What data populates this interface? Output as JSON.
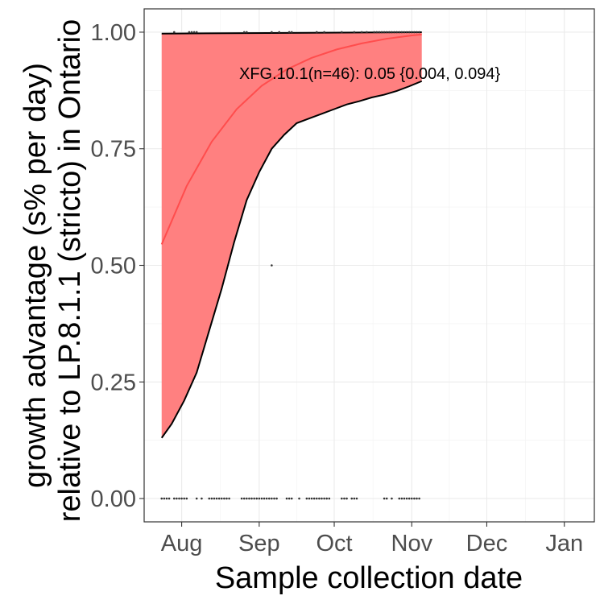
{
  "chart_data": {
    "type": "area",
    "annotation": "XFG.10.1(n=46): 0.05 {0.004, 0.094}",
    "xlabel": "Sample collection date",
    "ylabel_line1": "growth advantage (s% per day)",
    "ylabel_line2": "relative to LP.8.1.1 (stricto) in Ontario",
    "x_ticks": [
      "2025-08-01",
      "2025-09-01",
      "2025-10-01",
      "2025-11-01",
      "2025-12-01",
      "2026-01-01"
    ],
    "x_tick_labels": [
      "Aug",
      "Sep",
      "Oct",
      "Nov",
      "Dec",
      "Jan"
    ],
    "xlim": [
      "2025-07-17",
      "2026-01-13"
    ],
    "y_ticks": [
      0.0,
      0.25,
      0.5,
      0.75,
      1.0
    ],
    "y_tick_labels": [
      "0.00",
      "0.25",
      "0.50",
      "0.75",
      "1.00"
    ],
    "ylim": [
      -0.05,
      1.05
    ],
    "grid": true,
    "fit_color": "#ff4d4d",
    "band_color": "#ff8080",
    "fit": {
      "x": [
        "2025-07-24",
        "2025-08-03",
        "2025-08-13",
        "2025-08-23",
        "2025-09-02",
        "2025-09-12",
        "2025-09-22",
        "2025-10-02",
        "2025-10-12",
        "2025-10-22",
        "2025-11-01",
        "2025-11-05"
      ],
      "y": [
        0.545,
        0.67,
        0.765,
        0.835,
        0.885,
        0.92,
        0.945,
        0.963,
        0.976,
        0.986,
        0.993,
        0.995
      ]
    },
    "band_lower": {
      "x": [
        "2025-07-24",
        "2025-07-28",
        "2025-08-02",
        "2025-08-07",
        "2025-08-12",
        "2025-08-17",
        "2025-08-22",
        "2025-08-27",
        "2025-09-01",
        "2025-09-06",
        "2025-09-11",
        "2025-09-16",
        "2025-09-21",
        "2025-09-26",
        "2025-10-01",
        "2025-10-06",
        "2025-10-11",
        "2025-10-16",
        "2025-10-21",
        "2025-10-26",
        "2025-10-31",
        "2025-11-05"
      ],
      "y": [
        0.13,
        0.16,
        0.21,
        0.27,
        0.36,
        0.45,
        0.55,
        0.64,
        0.7,
        0.75,
        0.78,
        0.805,
        0.815,
        0.825,
        0.835,
        0.845,
        0.852,
        0.86,
        0.866,
        0.874,
        0.884,
        0.895
      ]
    },
    "band_upper": {
      "x": [
        "2025-07-24",
        "2025-11-05"
      ],
      "y": [
        0.997,
        1.0
      ]
    },
    "observations": [
      {
        "x": "2025-07-29",
        "y": 1
      },
      {
        "x": "2025-08-04",
        "y": 1
      },
      {
        "x": "2025-08-05",
        "y": 1
      },
      {
        "x": "2025-08-06",
        "y": 1
      },
      {
        "x": "2025-08-07",
        "y": 1
      },
      {
        "x": "2025-08-26",
        "y": 1
      },
      {
        "x": "2025-08-27",
        "y": 1
      },
      {
        "x": "2025-09-06",
        "y": 1
      },
      {
        "x": "2025-09-09",
        "y": 1
      },
      {
        "x": "2025-09-13",
        "y": 1
      },
      {
        "x": "2025-09-14",
        "y": 1
      },
      {
        "x": "2025-09-24",
        "y": 1
      },
      {
        "x": "2025-09-27",
        "y": 1
      },
      {
        "x": "2025-10-04",
        "y": 1
      },
      {
        "x": "2025-10-09",
        "y": 1
      },
      {
        "x": "2025-10-12",
        "y": 1
      },
      {
        "x": "2025-10-14",
        "y": 1
      },
      {
        "x": "2025-10-17",
        "y": 1
      },
      {
        "x": "2025-10-18",
        "y": 1
      },
      {
        "x": "2025-10-19",
        "y": 1
      },
      {
        "x": "2025-10-20",
        "y": 1
      },
      {
        "x": "2025-10-21",
        "y": 1
      },
      {
        "x": "2025-10-22",
        "y": 1
      },
      {
        "x": "2025-10-23",
        "y": 1
      },
      {
        "x": "2025-10-24",
        "y": 1
      },
      {
        "x": "2025-10-25",
        "y": 1
      },
      {
        "x": "2025-10-26",
        "y": 1
      },
      {
        "x": "2025-10-27",
        "y": 1
      },
      {
        "x": "2025-10-28",
        "y": 1
      },
      {
        "x": "2025-10-29",
        "y": 1
      },
      {
        "x": "2025-10-30",
        "y": 1
      },
      {
        "x": "2025-10-31",
        "y": 1
      },
      {
        "x": "2025-11-01",
        "y": 1
      },
      {
        "x": "2025-11-02",
        "y": 1
      },
      {
        "x": "2025-11-03",
        "y": 1
      },
      {
        "x": "2025-11-04",
        "y": 1
      },
      {
        "x": "2025-09-06",
        "y": 0.5
      },
      {
        "x": "2025-07-24",
        "y": 0
      },
      {
        "x": "2025-07-25",
        "y": 0
      },
      {
        "x": "2025-07-26",
        "y": 0
      },
      {
        "x": "2025-07-27",
        "y": 0
      },
      {
        "x": "2025-07-29",
        "y": 0
      },
      {
        "x": "2025-07-30",
        "y": 0
      },
      {
        "x": "2025-07-31",
        "y": 0
      },
      {
        "x": "2025-08-01",
        "y": 0
      },
      {
        "x": "2025-08-02",
        "y": 0
      },
      {
        "x": "2025-08-03",
        "y": 0
      },
      {
        "x": "2025-08-07",
        "y": 0
      },
      {
        "x": "2025-08-09",
        "y": 0
      },
      {
        "x": "2025-08-12",
        "y": 0
      },
      {
        "x": "2025-08-13",
        "y": 0
      },
      {
        "x": "2025-08-14",
        "y": 0
      },
      {
        "x": "2025-08-15",
        "y": 0
      },
      {
        "x": "2025-08-16",
        "y": 0
      },
      {
        "x": "2025-08-17",
        "y": 0
      },
      {
        "x": "2025-08-18",
        "y": 0
      },
      {
        "x": "2025-08-19",
        "y": 0
      },
      {
        "x": "2025-08-20",
        "y": 0
      },
      {
        "x": "2025-08-25",
        "y": 0
      },
      {
        "x": "2025-08-26",
        "y": 0
      },
      {
        "x": "2025-08-27",
        "y": 0
      },
      {
        "x": "2025-08-28",
        "y": 0
      },
      {
        "x": "2025-08-29",
        "y": 0
      },
      {
        "x": "2025-08-30",
        "y": 0
      },
      {
        "x": "2025-08-31",
        "y": 0
      },
      {
        "x": "2025-09-01",
        "y": 0
      },
      {
        "x": "2025-09-02",
        "y": 0
      },
      {
        "x": "2025-09-03",
        "y": 0
      },
      {
        "x": "2025-09-04",
        "y": 0
      },
      {
        "x": "2025-09-05",
        "y": 0
      },
      {
        "x": "2025-09-06",
        "y": 0
      },
      {
        "x": "2025-09-07",
        "y": 0
      },
      {
        "x": "2025-09-08",
        "y": 0
      },
      {
        "x": "2025-09-12",
        "y": 0
      },
      {
        "x": "2025-09-13",
        "y": 0
      },
      {
        "x": "2025-09-14",
        "y": 0
      },
      {
        "x": "2025-09-17",
        "y": 0
      },
      {
        "x": "2025-09-20",
        "y": 0
      },
      {
        "x": "2025-09-21",
        "y": 0
      },
      {
        "x": "2025-09-22",
        "y": 0
      },
      {
        "x": "2025-09-23",
        "y": 0
      },
      {
        "x": "2025-09-24",
        "y": 0
      },
      {
        "x": "2025-09-25",
        "y": 0
      },
      {
        "x": "2025-09-26",
        "y": 0
      },
      {
        "x": "2025-09-27",
        "y": 0
      },
      {
        "x": "2025-09-28",
        "y": 0
      },
      {
        "x": "2025-09-29",
        "y": 0
      },
      {
        "x": "2025-10-04",
        "y": 0
      },
      {
        "x": "2025-10-05",
        "y": 0
      },
      {
        "x": "2025-10-06",
        "y": 0
      },
      {
        "x": "2025-10-08",
        "y": 0
      },
      {
        "x": "2025-10-09",
        "y": 0
      },
      {
        "x": "2025-10-10",
        "y": 0
      },
      {
        "x": "2025-10-21",
        "y": 0
      },
      {
        "x": "2025-10-22",
        "y": 0
      },
      {
        "x": "2025-10-24",
        "y": 0
      },
      {
        "x": "2025-10-27",
        "y": 0
      },
      {
        "x": "2025-10-28",
        "y": 0
      },
      {
        "x": "2025-10-29",
        "y": 0
      },
      {
        "x": "2025-10-30",
        "y": 0
      },
      {
        "x": "2025-10-31",
        "y": 0
      },
      {
        "x": "2025-11-01",
        "y": 0
      },
      {
        "x": "2025-11-02",
        "y": 0
      },
      {
        "x": "2025-11-03",
        "y": 0
      },
      {
        "x": "2025-11-04",
        "y": 0
      }
    ]
  }
}
